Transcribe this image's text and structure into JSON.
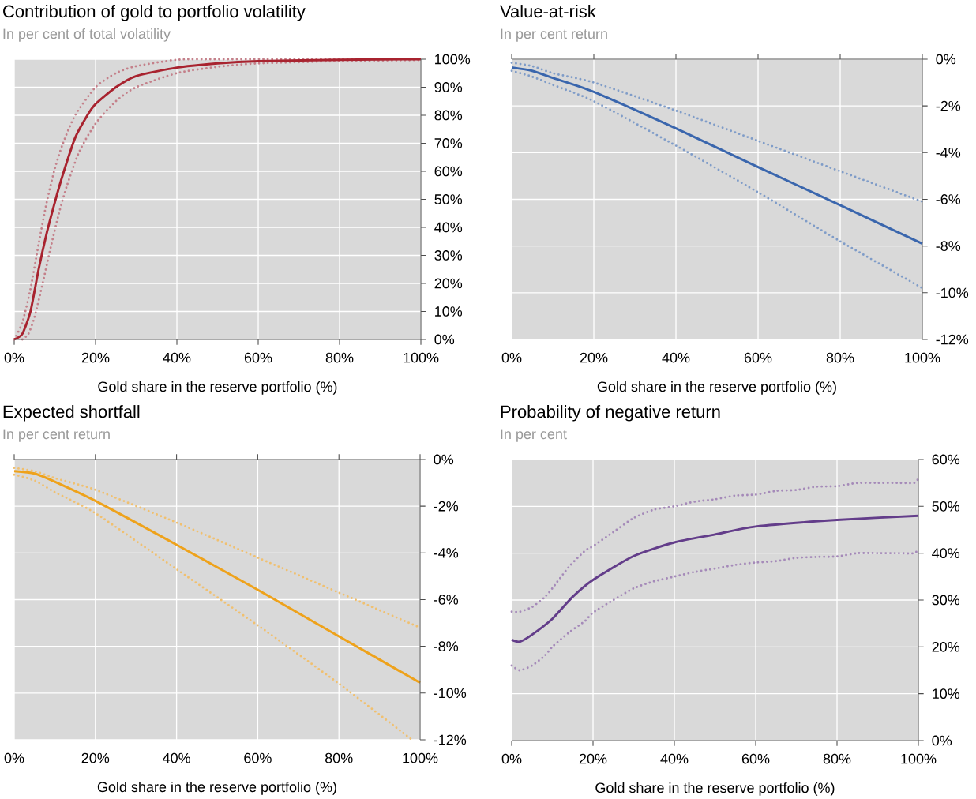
{
  "chart_data": [
    {
      "type": "line",
      "title": "Contribution of gold to portfolio volatility",
      "subtitle": "In per cent of total volatility",
      "xlabel": "Gold share in the reserve portfolio (%)",
      "xlim": [
        0,
        100
      ],
      "xticks": [
        {
          "value": 0,
          "label": "0%"
        },
        {
          "value": 20,
          "label": "20%"
        },
        {
          "value": 40,
          "label": "40%"
        },
        {
          "value": 60,
          "label": "60%"
        },
        {
          "value": 80,
          "label": "80%"
        },
        {
          "value": 100,
          "label": "100%"
        }
      ],
      "ylim": [
        0,
        100
      ],
      "yticks": [
        {
          "value": 0,
          "label": "0%"
        },
        {
          "value": 10,
          "label": "10%"
        },
        {
          "value": 20,
          "label": "20%"
        },
        {
          "value": 30,
          "label": "30%"
        },
        {
          "value": 40,
          "label": "40%"
        },
        {
          "value": 50,
          "label": "50%"
        },
        {
          "value": 60,
          "label": "60%"
        },
        {
          "value": 70,
          "label": "70%"
        },
        {
          "value": 80,
          "label": "80%"
        },
        {
          "value": 90,
          "label": "90%"
        },
        {
          "value": 100,
          "label": "100%"
        }
      ],
      "grid": true,
      "series": [
        {
          "color": "#c4808a",
          "line_style": "dotted",
          "x": [
            0,
            2,
            4,
            6,
            8,
            10,
            12,
            15,
            20,
            25,
            30,
            40,
            50,
            100
          ],
          "values": [
            0,
            6,
            18,
            34,
            49,
            61,
            70,
            80,
            90,
            95,
            97.5,
            99.8,
            100,
            100
          ]
        },
        {
          "color": "#c4808a",
          "line_style": "dotted",
          "x": [
            2,
            3.5,
            5,
            7,
            9,
            11,
            13,
            16,
            20,
            25,
            30,
            40,
            50,
            60,
            80,
            100
          ],
          "values": [
            0,
            2,
            8,
            20,
            33,
            45,
            55,
            67,
            77,
            85,
            90,
            95,
            97.3,
            98.5,
            99.3,
            99.7
          ]
        },
        {
          "color": "#a8232f",
          "line_style": "solid",
          "x": [
            0,
            2,
            4,
            6,
            8,
            10,
            12,
            15,
            18,
            20,
            25,
            30,
            40,
            50,
            60,
            80,
            100
          ],
          "values": [
            0,
            2,
            10,
            25,
            38,
            49,
            59,
            72,
            80,
            84,
            90,
            94,
            97,
            98.5,
            99.3,
            99.8,
            100
          ]
        }
      ]
    },
    {
      "type": "line",
      "title": "Value-at-risk",
      "subtitle": "In per cent return",
      "xlabel": "Gold share in the reserve portfolio (%)",
      "xlim": [
        0,
        100
      ],
      "xticks": [
        {
          "value": 0,
          "label": "0%"
        },
        {
          "value": 20,
          "label": "20%"
        },
        {
          "value": 40,
          "label": "40%"
        },
        {
          "value": 60,
          "label": "60%"
        },
        {
          "value": 80,
          "label": "80%"
        },
        {
          "value": 100,
          "label": "100%"
        }
      ],
      "ylim": [
        -12,
        0
      ],
      "yticks": [
        {
          "value": -12,
          "label": "-12%"
        },
        {
          "value": -10,
          "label": "-10%"
        },
        {
          "value": -8,
          "label": "-8%"
        },
        {
          "value": -6,
          "label": "-6%"
        },
        {
          "value": -4,
          "label": "-4%"
        },
        {
          "value": -2,
          "label": "-2%"
        },
        {
          "value": 0,
          "label": "0%"
        }
      ],
      "grid": true,
      "series": [
        {
          "color": "#7f9cc8",
          "line_style": "dotted",
          "x": [
            0,
            5,
            10,
            20,
            40,
            60,
            80,
            100
          ],
          "values": [
            -0.15,
            -0.3,
            -0.6,
            -1.0,
            -2.2,
            -3.5,
            -4.8,
            -6.1
          ]
        },
        {
          "color": "#7f9cc8",
          "line_style": "dotted",
          "x": [
            0,
            5,
            10,
            20,
            40,
            60,
            80,
            100
          ],
          "values": [
            -0.5,
            -0.75,
            -1.1,
            -1.8,
            -3.7,
            -5.7,
            -7.8,
            -9.8
          ]
        },
        {
          "color": "#3a66ad",
          "line_style": "solid",
          "x": [
            0,
            5,
            10,
            20,
            40,
            60,
            80,
            100
          ],
          "values": [
            -0.35,
            -0.5,
            -0.8,
            -1.4,
            -2.96,
            -4.62,
            -6.25,
            -7.9
          ]
        }
      ]
    },
    {
      "type": "line",
      "title": "Expected shortfall",
      "subtitle": "In per cent return",
      "xlabel": "Gold share in the reserve portfolio (%)",
      "xlim": [
        0,
        100
      ],
      "xticks": [
        {
          "value": 0,
          "label": "0%"
        },
        {
          "value": 20,
          "label": "20%"
        },
        {
          "value": 40,
          "label": "40%"
        },
        {
          "value": 60,
          "label": "60%"
        },
        {
          "value": 80,
          "label": "80%"
        },
        {
          "value": 100,
          "label": "100%"
        }
      ],
      "ylim": [
        -12,
        0
      ],
      "yticks": [
        {
          "value": -12,
          "label": "-12%"
        },
        {
          "value": -10,
          "label": "-10%"
        },
        {
          "value": -8,
          "label": "-8%"
        },
        {
          "value": -6,
          "label": "-6%"
        },
        {
          "value": -4,
          "label": "-4%"
        },
        {
          "value": -2,
          "label": "-2%"
        },
        {
          "value": 0,
          "label": "0%"
        }
      ],
      "grid": true,
      "series": [
        {
          "color": "#f0c070",
          "line_style": "dotted",
          "x": [
            0,
            5,
            10,
            20,
            40,
            60,
            80,
            100
          ],
          "values": [
            -0.36,
            -0.5,
            -0.8,
            -1.3,
            -2.7,
            -4.2,
            -5.7,
            -7.2
          ]
        },
        {
          "color": "#f0c070",
          "line_style": "dotted",
          "x": [
            0,
            5,
            10,
            20,
            40,
            60,
            80,
            98
          ],
          "values": [
            -0.65,
            -0.9,
            -1.4,
            -2.3,
            -4.7,
            -7.1,
            -9.6,
            -12
          ]
        },
        {
          "color": "#eea21b",
          "line_style": "solid",
          "x": [
            0,
            5,
            10,
            20,
            40,
            60,
            80,
            100
          ],
          "values": [
            -0.5,
            -0.6,
            -0.95,
            -1.77,
            -3.65,
            -5.58,
            -7.57,
            -9.56
          ]
        }
      ]
    },
    {
      "type": "line",
      "title": "Probability of negative return",
      "subtitle": "In per cent",
      "xlabel": "Gold share in the reserve portfolio (%)",
      "xlim": [
        0,
        100
      ],
      "xticks": [
        {
          "value": 0,
          "label": "0%"
        },
        {
          "value": 20,
          "label": "20%"
        },
        {
          "value": 40,
          "label": "40%"
        },
        {
          "value": 60,
          "label": "60%"
        },
        {
          "value": 80,
          "label": "80%"
        },
        {
          "value": 100,
          "label": "100%"
        }
      ],
      "ylim": [
        0,
        60
      ],
      "yticks": [
        {
          "value": 0,
          "label": "0%"
        },
        {
          "value": 10,
          "label": "10%"
        },
        {
          "value": 20,
          "label": "20%"
        },
        {
          "value": 30,
          "label": "30%"
        },
        {
          "value": 40,
          "label": "40%"
        },
        {
          "value": 50,
          "label": "50%"
        },
        {
          "value": 60,
          "label": "60%"
        }
      ],
      "grid": true,
      "series": [
        {
          "color": "#a58ab9",
          "line_style": "dotted",
          "x": [
            0,
            2,
            5,
            8,
            10,
            14,
            18,
            20,
            25,
            30,
            35,
            40,
            45,
            50,
            55,
            60,
            65,
            70,
            75,
            80,
            85,
            90,
            95,
            99,
            100
          ],
          "values": [
            27.5,
            27.5,
            28.5,
            30.5,
            32.5,
            37,
            40.5,
            41.5,
            44.5,
            47.5,
            49.3,
            50,
            51,
            51.5,
            52.3,
            52.5,
            53.3,
            53.5,
            54.2,
            54.3,
            55,
            55,
            55,
            55,
            56
          ]
        },
        {
          "color": "#a58ab9",
          "line_style": "dotted",
          "x": [
            0,
            2,
            5,
            8,
            10,
            14,
            18,
            20,
            25,
            30,
            35,
            40,
            45,
            50,
            55,
            60,
            65,
            70,
            75,
            80,
            85,
            90,
            95,
            99,
            100
          ],
          "values": [
            16,
            15,
            16,
            18,
            20,
            23,
            25.5,
            27.3,
            30,
            32.5,
            34,
            35,
            36,
            36.7,
            37.5,
            38,
            38.3,
            39,
            39.2,
            39.3,
            40,
            40,
            40,
            40,
            41
          ]
        },
        {
          "color": "#633d8a",
          "line_style": "solid",
          "x": [
            0,
            2,
            5,
            10,
            15,
            20,
            30,
            40,
            50,
            60,
            80,
            100
          ],
          "values": [
            21.5,
            21.1,
            22.6,
            26,
            30.7,
            34.3,
            39.4,
            42.3,
            44,
            45.7,
            47.1,
            48.0
          ]
        }
      ]
    }
  ]
}
